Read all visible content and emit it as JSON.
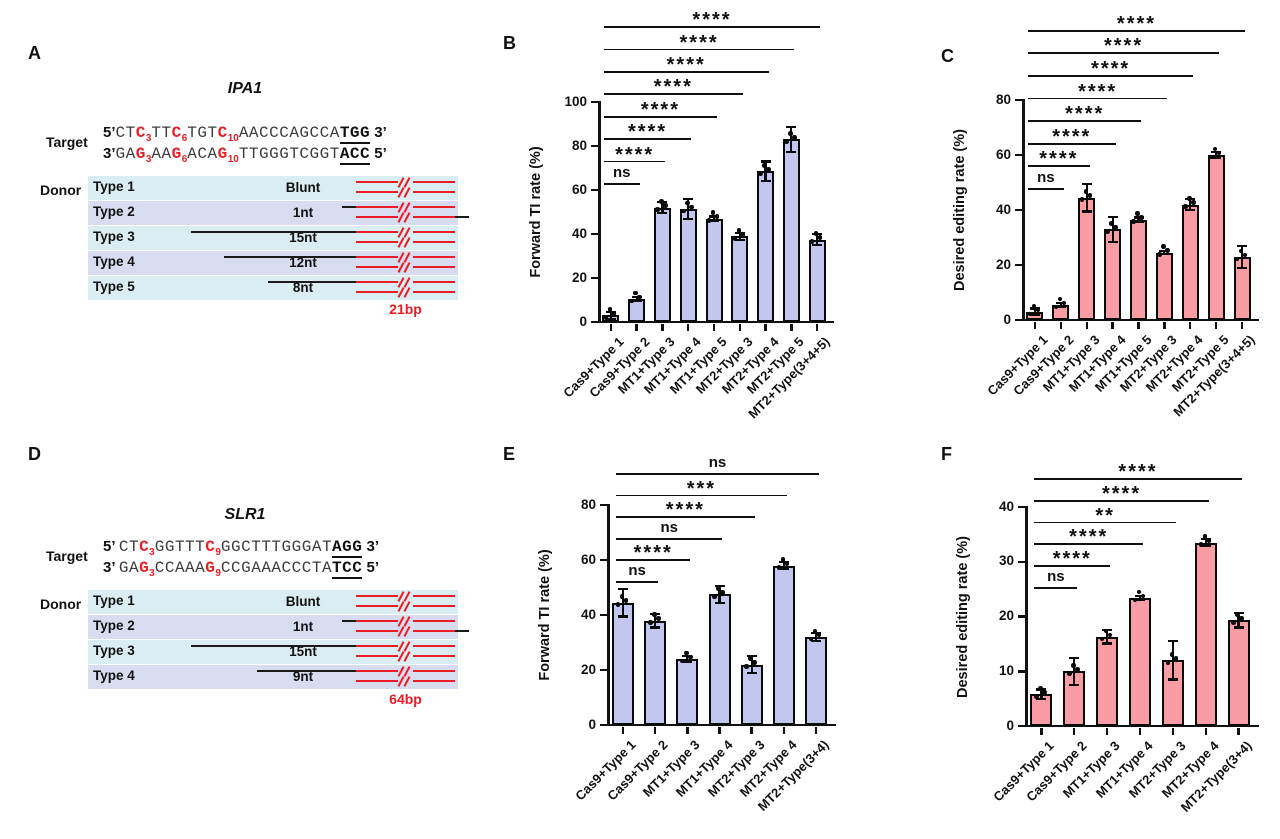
{
  "colors": {
    "red": "#EC1C24",
    "purple_bar": "#C3C7F0",
    "pink_bar": "#F99CA3",
    "cyan_row": "#DAEDF2",
    "lavender_row": "#D8DCF0"
  },
  "panelA": {
    "letter": "A",
    "gene": "IPA1",
    "target_label": "Target",
    "donor_label": "Donor",
    "strands": [
      {
        "segments": [
          {
            "t": "5’",
            "b": 1
          },
          {
            "t": "CT"
          },
          {
            "t": "C",
            "r": 1,
            "sub": "3"
          },
          {
            "t": "TT"
          },
          {
            "t": "C",
            "r": 1,
            "sub": "6"
          },
          {
            "t": "TGT"
          },
          {
            "t": "C",
            "r": 1,
            "sub": "10"
          },
          {
            "t": "AACCCAGCCA"
          },
          {
            "t": "TGG",
            "pam": 1
          },
          {
            "t": " 3’",
            "b": 1
          }
        ]
      },
      {
        "segments": [
          {
            "t": "3’",
            "b": 1
          },
          {
            "t": "GA"
          },
          {
            "t": "G",
            "r": 1,
            "sub": "3"
          },
          {
            "t": "AA"
          },
          {
            "t": "G",
            "r": 1,
            "sub": "6"
          },
          {
            "t": "ACA"
          },
          {
            "t": "G",
            "r": 1,
            "sub": "10"
          },
          {
            "t": "TTGGGTCGGT"
          },
          {
            "t": "ACC",
            "pam": 1
          },
          {
            "t": " 5’",
            "b": 1
          }
        ]
      }
    ],
    "donors": [
      {
        "name": "Type 1",
        "length": "Blunt",
        "overhang_nt": 0
      },
      {
        "name": "Type 2",
        "length": "1nt",
        "overhang_nt": 1
      },
      {
        "name": "Type 3",
        "length": "15nt",
        "overhang_nt": 15
      },
      {
        "name": "Type 4",
        "length": "12nt",
        "overhang_nt": 12
      },
      {
        "name": "Type 5",
        "length": "8nt",
        "overhang_nt": 8
      }
    ],
    "ds_length_label": "21bp"
  },
  "panelD": {
    "letter": "D",
    "gene": "SLR1",
    "target_label": "Target",
    "donor_label": "Donor",
    "strands": [
      {
        "segments": [
          {
            "t": "5’ ",
            "b": 1
          },
          {
            "t": "CT"
          },
          {
            "t": "C",
            "r": 1,
            "sub": "3"
          },
          {
            "t": "GGTTT"
          },
          {
            "t": "C",
            "r": 1,
            "sub": "9"
          },
          {
            "t": "GGCTTTGGGAT"
          },
          {
            "t": "AGG",
            "pam": 1
          },
          {
            "t": " 3’",
            "b": 1
          }
        ]
      },
      {
        "segments": [
          {
            "t": "3’ ",
            "b": 1
          },
          {
            "t": "GA"
          },
          {
            "t": "G",
            "r": 1,
            "sub": "3"
          },
          {
            "t": "CCAAA"
          },
          {
            "t": "G",
            "r": 1,
            "sub": "9"
          },
          {
            "t": "CCGAAACCCTA"
          },
          {
            "t": "TCC",
            "pam": 1
          },
          {
            "t": " 5’",
            "b": 1
          }
        ]
      }
    ],
    "donors": [
      {
        "name": "Type 1",
        "length": "Blunt",
        "overhang_nt": 0
      },
      {
        "name": "Type 2",
        "length": "1nt",
        "overhang_nt": 1
      },
      {
        "name": "Type 3",
        "length": "15nt",
        "overhang_nt": 15
      },
      {
        "name": "Type 4",
        "length": "9nt",
        "overhang_nt": 9
      }
    ],
    "ds_length_label": "64bp"
  },
  "chart_data": [
    {
      "panel": "B",
      "type": "bar",
      "title": "",
      "xlabel": "",
      "ylabel": "Forward TI rate (%)",
      "ylim": [
        0,
        100
      ],
      "yticks": [
        0,
        20,
        40,
        60,
        80,
        100
      ],
      "bar_color": "#C3C7F0",
      "categories": [
        "Cas9+Type 1",
        "Cas9+Type 2",
        "MT1+Type 3",
        "MT1+Type 4",
        "MT1+Type 5",
        "MT2+Type 3",
        "MT2+Type 4",
        "MT2+Type 5",
        "MT2+Type(3+4+5)"
      ],
      "values": [
        3,
        10.5,
        52,
        51.5,
        47,
        39,
        68.5,
        83,
        37.5
      ],
      "errors": [
        1.5,
        1,
        2.5,
        4.5,
        1,
        1.5,
        4.5,
        5.5,
        2.5
      ],
      "significance": [
        {
          "from": 1,
          "to": 2,
          "label": "ns"
        },
        {
          "from": 1,
          "to": 3,
          "label": "****"
        },
        {
          "from": 1,
          "to": 4,
          "label": "****"
        },
        {
          "from": 1,
          "to": 5,
          "label": "****"
        },
        {
          "from": 1,
          "to": 6,
          "label": "****"
        },
        {
          "from": 1,
          "to": 7,
          "label": "****"
        },
        {
          "from": 1,
          "to": 8,
          "label": "****"
        },
        {
          "from": 1,
          "to": 9,
          "label": "****"
        }
      ]
    },
    {
      "panel": "C",
      "type": "bar",
      "title": "",
      "xlabel": "",
      "ylabel": "Desired editing rate (%)",
      "ylim": [
        0,
        80
      ],
      "yticks": [
        0,
        20,
        40,
        60,
        80
      ],
      "bar_color": "#F99CA3",
      "categories": [
        "Cas9+Type 1",
        "Cas9+Type 2",
        "MT1+Type 3",
        "MT1+Type 4",
        "MT1+Type 5",
        "MT2+Type 3",
        "MT2+Type 4",
        "MT2+Type 5",
        "MT2+Type(3+4+5)"
      ],
      "values": [
        3,
        5.5,
        44.5,
        33,
        36.5,
        24.5,
        42,
        60,
        23
      ],
      "errors": [
        1.2,
        0.8,
        5,
        4.5,
        0.8,
        0.6,
        2,
        1,
        4
      ],
      "significance": [
        {
          "from": 1,
          "to": 2,
          "label": "ns"
        },
        {
          "from": 1,
          "to": 3,
          "label": "****"
        },
        {
          "from": 1,
          "to": 4,
          "label": "****"
        },
        {
          "from": 1,
          "to": 5,
          "label": "****"
        },
        {
          "from": 1,
          "to": 6,
          "label": "****"
        },
        {
          "from": 1,
          "to": 7,
          "label": "****"
        },
        {
          "from": 1,
          "to": 8,
          "label": "****"
        },
        {
          "from": 1,
          "to": 9,
          "label": "****"
        }
      ]
    },
    {
      "panel": "E",
      "type": "bar",
      "title": "",
      "xlabel": "",
      "ylabel": "Forward TI rate (%)",
      "ylim": [
        0,
        80
      ],
      "yticks": [
        0,
        20,
        40,
        60,
        80
      ],
      "bar_color": "#C3C7F0",
      "categories": [
        "Cas9+Type 1",
        "Cas9+Type 2",
        "MT1+Type 3",
        "MT1+Type 4",
        "MT2+Type 3",
        "MT2+Type 4",
        "MT2+Type(3+4)"
      ],
      "values": [
        44.5,
        38,
        24,
        47.5,
        22,
        58,
        32
      ],
      "errors": [
        5,
        2.5,
        1.2,
        3,
        3,
        1.2,
        1.5
      ],
      "significance": [
        {
          "from": 1,
          "to": 2,
          "label": "ns"
        },
        {
          "from": 1,
          "to": 3,
          "label": "****"
        },
        {
          "from": 1,
          "to": 4,
          "label": "ns"
        },
        {
          "from": 1,
          "to": 5,
          "label": "****"
        },
        {
          "from": 1,
          "to": 6,
          "label": "***"
        },
        {
          "from": 1,
          "to": 7,
          "label": "ns"
        }
      ]
    },
    {
      "panel": "F",
      "type": "bar",
      "title": "",
      "xlabel": "",
      "ylabel": "Desired editing rate (%)",
      "ylim": [
        0,
        40
      ],
      "yticks": [
        0,
        10,
        20,
        30,
        40
      ],
      "bar_color": "#F99CA3",
      "categories": [
        "Cas9+Type 1",
        "Cas9+Type 2",
        "MT1+Type 3",
        "MT1+Type 4",
        "MT2+Type 3",
        "MT2+Type 4",
        "MT2+Type(3+4)"
      ],
      "values": [
        5.8,
        10,
        16.3,
        23.4,
        12,
        33.5,
        19.3
      ],
      "errors": [
        0.9,
        2.5,
        1.2,
        0.4,
        3.5,
        0.6,
        1.3
      ],
      "significance": [
        {
          "from": 1,
          "to": 2,
          "label": "ns"
        },
        {
          "from": 1,
          "to": 3,
          "label": "****"
        },
        {
          "from": 1,
          "to": 4,
          "label": "****"
        },
        {
          "from": 1,
          "to": 5,
          "label": "**"
        },
        {
          "from": 1,
          "to": 6,
          "label": "****"
        },
        {
          "from": 1,
          "to": 7,
          "label": "****"
        }
      ]
    }
  ]
}
